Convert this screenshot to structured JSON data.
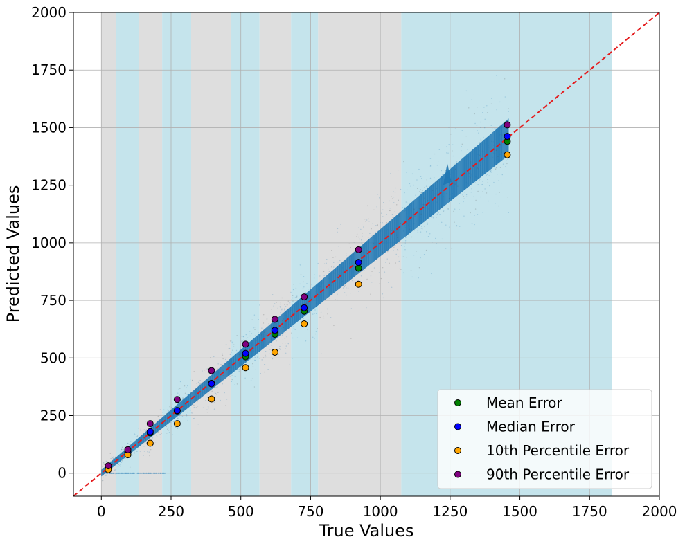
{
  "chart_data": {
    "type": "scatter",
    "title": "",
    "xlabel": "True Values",
    "ylabel": "Predicted Values",
    "xlim": [
      -100,
      2000
    ],
    "ylim": [
      -100,
      2000
    ],
    "x_ticks": [
      0,
      250,
      500,
      750,
      1000,
      1250,
      1500,
      1750,
      2000
    ],
    "y_ticks": [
      0,
      250,
      500,
      750,
      1000,
      1250,
      1500,
      1750,
      2000
    ],
    "grid": true,
    "legend_position": "lower-right",
    "reference_line": {
      "label": "",
      "color": "#e41a1c",
      "style": "dashed",
      "from": [
        -100,
        -100
      ],
      "to": [
        2000,
        2000
      ]
    },
    "background_bands": [
      {
        "x": [
          0,
          52
        ],
        "color": "#dedede"
      },
      {
        "x": [
          52,
          135
        ],
        "color": "#c5e4ec"
      },
      {
        "x": [
          135,
          218
        ],
        "color": "#dedede"
      },
      {
        "x": [
          218,
          322
        ],
        "color": "#c5e4ec"
      },
      {
        "x": [
          322,
          465
        ],
        "color": "#dedede"
      },
      {
        "x": [
          465,
          567
        ],
        "color": "#c5e4ec"
      },
      {
        "x": [
          567,
          680
        ],
        "color": "#dedede"
      },
      {
        "x": [
          680,
          777
        ],
        "color": "#c5e4ec"
      },
      {
        "x": [
          777,
          1075
        ],
        "color": "#dedede"
      },
      {
        "x": [
          1075,
          1830
        ],
        "color": "#c5e4ec"
      }
    ],
    "scatter_cloud": {
      "color": "#1f77b4",
      "x_range": [
        0,
        1460
      ],
      "note": ""
    },
    "categories": [
      25,
      95,
      175,
      272,
      395,
      517,
      622,
      727,
      922,
      1455
    ],
    "series": [
      {
        "name": "Mean Error",
        "color": "#008000",
        "values": [
          20,
          90,
          175,
          270,
          390,
          505,
          603,
          703,
          890,
          1440
        ]
      },
      {
        "name": "Median Error",
        "color": "#0000ff",
        "values": [
          25,
          92,
          180,
          272,
          388,
          520,
          620,
          718,
          915,
          1462
        ]
      },
      {
        "name": "10th Percentile Error",
        "color": "#ffa500",
        "values": [
          15,
          80,
          130,
          215,
          322,
          458,
          525,
          648,
          820,
          1382
        ]
      },
      {
        "name": "90th Percentile Error",
        "color": "#800080",
        "values": [
          32,
          102,
          215,
          320,
          445,
          560,
          668,
          765,
          970,
          1512
        ]
      }
    ]
  }
}
